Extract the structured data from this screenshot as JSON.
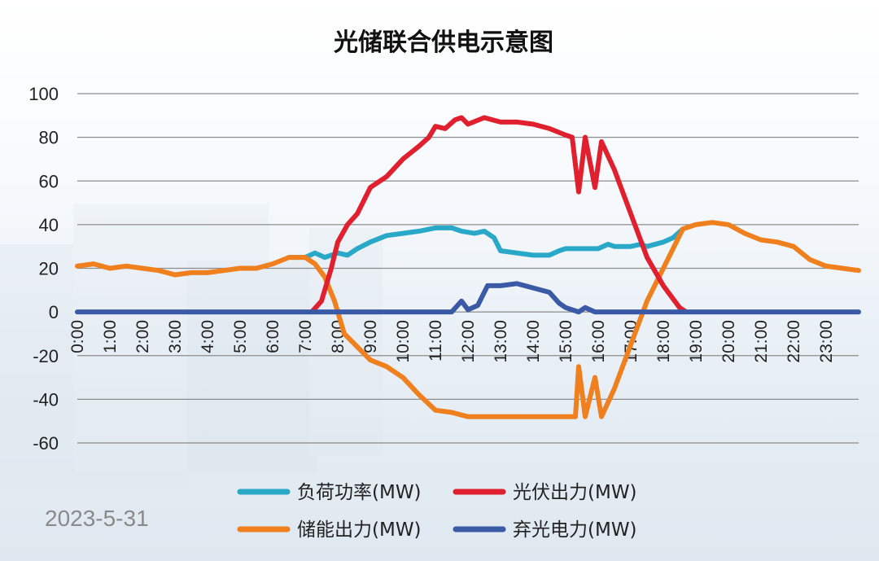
{
  "chart_data": {
    "type": "line",
    "title": "光储联合供电示意图",
    "ylim": [
      -60,
      100
    ],
    "yticks": [
      100,
      80,
      60,
      40,
      20,
      0,
      -20,
      -40,
      -60
    ],
    "xlim": [
      0,
      24
    ],
    "xticks": [
      {
        "v": 0,
        "label": "0:00"
      },
      {
        "v": 1,
        "label": "1:00"
      },
      {
        "v": 2,
        "label": "2:00"
      },
      {
        "v": 3,
        "label": "3:00"
      },
      {
        "v": 4,
        "label": "4:00"
      },
      {
        "v": 5,
        "label": "5:00"
      },
      {
        "v": 6,
        "label": "6:00"
      },
      {
        "v": 7,
        "label": "7:00"
      },
      {
        "v": 8,
        "label": "8:00"
      },
      {
        "v": 9,
        "label": "9:00"
      },
      {
        "v": 10,
        "label": "10:00"
      },
      {
        "v": 11,
        "label": "11:00"
      },
      {
        "v": 12,
        "label": "12:00"
      },
      {
        "v": 13,
        "label": "13:00"
      },
      {
        "v": 14,
        "label": "14:00"
      },
      {
        "v": 15,
        "label": "15:00"
      },
      {
        "v": 16,
        "label": "16:00"
      },
      {
        "v": 17,
        "label": "17:00"
      },
      {
        "v": 18,
        "label": "18:00"
      },
      {
        "v": 19,
        "label": "19:00"
      },
      {
        "v": 20,
        "label": "20:00"
      },
      {
        "v": 21,
        "label": "21:00"
      },
      {
        "v": 22,
        "label": "22:00"
      },
      {
        "v": 23,
        "label": "23:00"
      }
    ],
    "grid": true,
    "legend_position": "bottom",
    "date_label": "2023-5-31",
    "series": [
      {
        "name": "负荷功率(MW)",
        "color": "#2aa8c8",
        "points": [
          [
            6.5,
            25
          ],
          [
            7,
            25
          ],
          [
            7.3,
            27
          ],
          [
            7.6,
            25
          ],
          [
            8,
            27
          ],
          [
            8.3,
            26
          ],
          [
            8.6,
            29
          ],
          [
            9,
            32
          ],
          [
            9.5,
            35
          ],
          [
            10,
            36
          ],
          [
            10.5,
            37
          ],
          [
            11,
            38.5
          ],
          [
            11.5,
            38.5
          ],
          [
            11.8,
            37
          ],
          [
            12.2,
            36
          ],
          [
            12.5,
            37
          ],
          [
            12.8,
            34
          ],
          [
            13,
            28
          ],
          [
            13.5,
            27
          ],
          [
            14,
            26
          ],
          [
            14.5,
            26
          ],
          [
            14.8,
            28
          ],
          [
            15,
            29
          ],
          [
            15.5,
            29
          ],
          [
            16,
            29
          ],
          [
            16.3,
            31
          ],
          [
            16.5,
            30
          ],
          [
            17,
            30
          ],
          [
            17.3,
            31
          ],
          [
            17.5,
            30
          ],
          [
            18,
            32
          ],
          [
            18.3,
            34
          ],
          [
            18.6,
            38
          ]
        ]
      },
      {
        "name": "光伏出力(MW)",
        "color": "#e0202e",
        "points": [
          [
            7.2,
            0
          ],
          [
            7.5,
            5
          ],
          [
            7.8,
            20
          ],
          [
            8,
            32
          ],
          [
            8.3,
            40
          ],
          [
            8.6,
            45
          ],
          [
            9,
            57
          ],
          [
            9.5,
            62
          ],
          [
            10,
            70
          ],
          [
            10.5,
            76
          ],
          [
            10.8,
            80
          ],
          [
            11,
            85
          ],
          [
            11.3,
            84
          ],
          [
            11.6,
            88
          ],
          [
            11.8,
            89
          ],
          [
            12,
            86
          ],
          [
            12.5,
            89
          ],
          [
            13,
            87
          ],
          [
            13.5,
            87
          ],
          [
            14,
            86
          ],
          [
            14.5,
            84
          ],
          [
            15,
            81
          ],
          [
            15.2,
            80
          ],
          [
            15.4,
            55
          ],
          [
            15.6,
            80
          ],
          [
            15.9,
            57
          ],
          [
            16.1,
            78
          ],
          [
            16.5,
            65
          ],
          [
            17,
            45
          ],
          [
            17.5,
            25
          ],
          [
            18,
            12
          ],
          [
            18.5,
            2
          ],
          [
            18.7,
            0
          ]
        ]
      },
      {
        "name": "储能出力(MW)",
        "color": "#f07f1e",
        "points": [
          [
            0,
            21
          ],
          [
            0.5,
            22
          ],
          [
            1,
            20
          ],
          [
            1.5,
            21
          ],
          [
            2,
            20
          ],
          [
            2.5,
            19
          ],
          [
            3,
            17
          ],
          [
            3.5,
            18
          ],
          [
            4,
            18
          ],
          [
            4.5,
            19
          ],
          [
            5,
            20
          ],
          [
            5.5,
            20
          ],
          [
            6,
            22
          ],
          [
            6.5,
            25
          ],
          [
            7,
            25
          ],
          [
            7.3,
            22
          ],
          [
            7.6,
            16
          ],
          [
            7.9,
            5
          ],
          [
            8.2,
            -10
          ],
          [
            8.6,
            -16
          ],
          [
            9,
            -22
          ],
          [
            9.5,
            -25
          ],
          [
            10,
            -30
          ],
          [
            10.5,
            -38
          ],
          [
            11,
            -45
          ],
          [
            11.5,
            -46
          ],
          [
            12,
            -48
          ],
          [
            13,
            -48
          ],
          [
            14,
            -48
          ],
          [
            15,
            -48
          ],
          [
            15.3,
            -48
          ],
          [
            15.4,
            -25
          ],
          [
            15.6,
            -48
          ],
          [
            15.9,
            -30
          ],
          [
            16.1,
            -48
          ],
          [
            16.5,
            -35
          ],
          [
            17,
            -15
          ],
          [
            17.5,
            5
          ],
          [
            18,
            20
          ],
          [
            18.6,
            38
          ],
          [
            19,
            40
          ],
          [
            19.5,
            41
          ],
          [
            20,
            40
          ],
          [
            20.5,
            36
          ],
          [
            21,
            33
          ],
          [
            21.5,
            32
          ],
          [
            22,
            30
          ],
          [
            22.5,
            24
          ],
          [
            23,
            21
          ],
          [
            23.5,
            20
          ],
          [
            24,
            19
          ]
        ]
      },
      {
        "name": "弃光电力(MW)",
        "color": "#3a5aa6",
        "points": [
          [
            0,
            0
          ],
          [
            11.5,
            0
          ],
          [
            11.8,
            5
          ],
          [
            12,
            1
          ],
          [
            12.3,
            3
          ],
          [
            12.6,
            12
          ],
          [
            13,
            12
          ],
          [
            13.5,
            13
          ],
          [
            14,
            11
          ],
          [
            14.5,
            9
          ],
          [
            14.8,
            4
          ],
          [
            15,
            2
          ],
          [
            15.4,
            0
          ],
          [
            15.6,
            2
          ],
          [
            15.9,
            0
          ],
          [
            16.2,
            0
          ],
          [
            24,
            0
          ]
        ]
      }
    ]
  }
}
